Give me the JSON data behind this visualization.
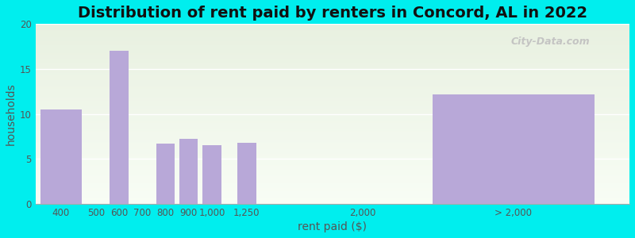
{
  "title": "Distribution of rent paid by renters in Concord, AL in 2022",
  "xlabel": "rent paid ($)",
  "ylabel": "households",
  "categories": [
    "400",
    "500",
    "600",
    "700",
    "800",
    "900",
    "1,000",
    "1,250",
    "2,000",
    "> 2,000"
  ],
  "values": [
    10.5,
    0,
    17,
    0,
    6.7,
    7.2,
    6.5,
    6.8,
    0,
    12.2
  ],
  "bar_color": "#b8a8d8",
  "background_color": "#00eeee",
  "plot_bg_top": "#e8f0e0",
  "plot_bg_bottom": "#f8fdf5",
  "ylim": [
    0,
    20
  ],
  "yticks": [
    0,
    5,
    10,
    15,
    20
  ],
  "title_fontsize": 14,
  "axis_label_fontsize": 10,
  "tick_fontsize": 8.5,
  "watermark": "City-Data.com",
  "bar_positions": [
    1.0,
    2.5,
    3.5,
    4.5,
    5.5,
    6.5,
    7.5,
    9.0,
    14.0,
    20.5
  ],
  "bar_widths": [
    1.8,
    0.0,
    0.8,
    0.0,
    0.8,
    0.8,
    0.8,
    0.8,
    0.0,
    7.0
  ],
  "xlim": [
    -0.1,
    25.5
  ]
}
